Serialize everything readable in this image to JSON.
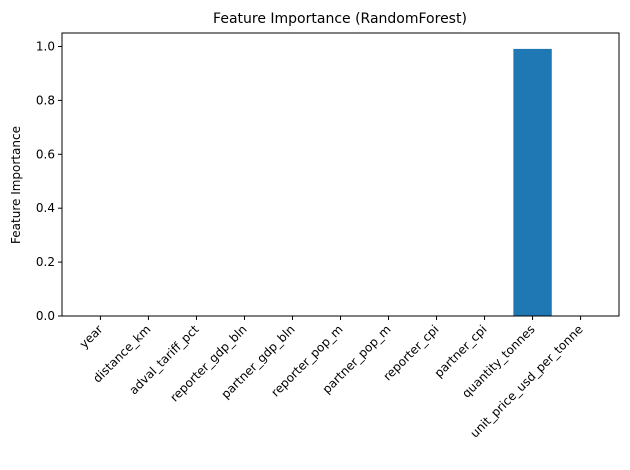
{
  "chart_data": {
    "type": "bar",
    "title": "Feature Importance (RandomForest)",
    "xlabel": "",
    "ylabel": "Feature Importance",
    "categories": [
      "year",
      "distance_km",
      "adval_tariff_pct",
      "reporter_gdp_bln",
      "partner_gdp_bln",
      "reporter_pop_m",
      "partner_pop_m",
      "reporter_cpi",
      "partner_cpi",
      "quantity_tonnes",
      "unit_price_usd_per_tonne"
    ],
    "values": [
      0.0,
      0.0,
      0.0,
      0.0,
      0.0,
      0.0,
      0.0,
      0.0,
      0.0,
      0.991,
      0.0
    ],
    "ylim": [
      0,
      1.05
    ],
    "yticks": [
      0.0,
      0.2,
      0.4,
      0.6,
      0.8,
      1.0
    ],
    "ytick_labels": [
      "0.0",
      "0.2",
      "0.4",
      "0.6",
      "0.8",
      "1.0"
    ],
    "bar_color": "#1f77b4",
    "grid": false,
    "legend": "none"
  }
}
